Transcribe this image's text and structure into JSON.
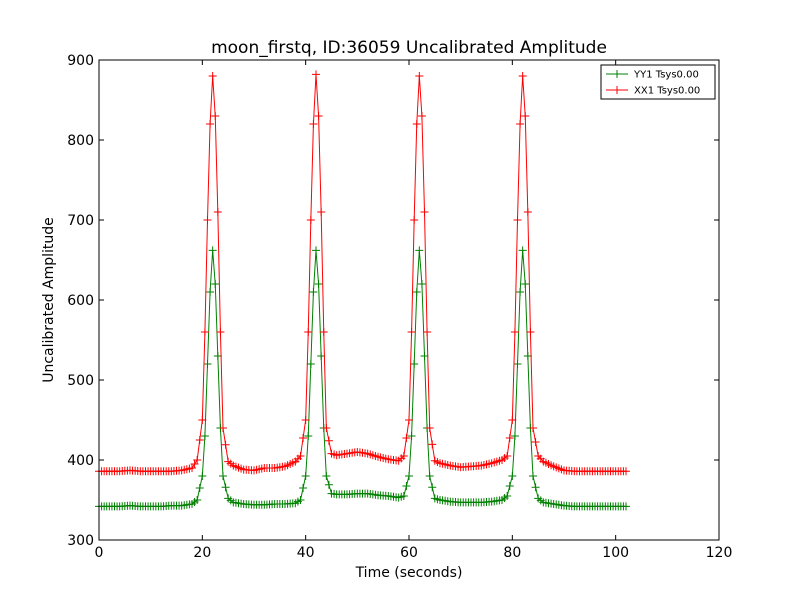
{
  "chart_data": {
    "type": "line",
    "title": "moon_firstq, ID:36059 Uncalibrated Amplitude",
    "xlabel": "Time (seconds)",
    "ylabel": "Uncalibrated Amplitude",
    "xlim": [
      0,
      120
    ],
    "ylim": [
      300,
      900
    ],
    "xticks": [
      0,
      20,
      40,
      60,
      80,
      100,
      120
    ],
    "yticks": [
      300,
      400,
      500,
      600,
      700,
      800,
      900
    ],
    "grid": false,
    "legend_position": "top-right",
    "x": [
      0,
      2,
      4,
      6,
      8,
      10,
      12,
      14,
      16,
      18,
      19,
      20,
      20.5,
      21,
      21.5,
      22,
      22.5,
      23,
      23.5,
      24,
      25,
      26,
      28,
      30,
      32,
      34,
      36,
      38,
      39,
      40,
      40.5,
      41,
      41.5,
      42,
      42.5,
      43,
      43.5,
      44,
      45,
      46,
      48,
      50,
      52,
      54,
      56,
      58,
      59,
      60,
      60.5,
      61,
      61.5,
      62,
      62.5,
      63,
      63.5,
      64,
      65,
      66,
      68,
      70,
      72,
      74,
      76,
      78,
      79,
      80,
      80.5,
      81,
      81.5,
      82,
      82.5,
      83,
      83.5,
      84,
      85,
      86,
      88,
      90,
      92,
      94,
      96,
      98,
      100,
      102
    ],
    "series": [
      {
        "name": "YY1 Tsys0.00",
        "color": "#008000",
        "values": [
          342,
          342,
          342,
          343,
          342,
          342,
          342,
          343,
          343,
          345,
          350,
          380,
          430,
          520,
          610,
          662,
          620,
          530,
          440,
          380,
          352,
          347,
          345,
          344,
          344,
          345,
          345,
          346,
          350,
          380,
          430,
          520,
          610,
          662,
          620,
          530,
          440,
          380,
          358,
          357,
          357,
          358,
          358,
          356,
          355,
          353,
          355,
          380,
          430,
          520,
          610,
          662,
          620,
          530,
          440,
          380,
          352,
          350,
          348,
          347,
          347,
          347,
          348,
          350,
          355,
          380,
          430,
          520,
          610,
          662,
          620,
          530,
          440,
          380,
          352,
          347,
          345,
          343,
          342,
          342,
          342,
          342,
          342,
          342
        ]
      },
      {
        "name": "XX1 Tsys0.00",
        "color": "#ff0000",
        "values": [
          386,
          386,
          386,
          387,
          386,
          386,
          386,
          386,
          387,
          390,
          400,
          450,
          560,
          700,
          820,
          880,
          830,
          710,
          560,
          440,
          398,
          393,
          388,
          387,
          390,
          390,
          392,
          398,
          405,
          450,
          560,
          700,
          820,
          882,
          830,
          710,
          560,
          440,
          408,
          406,
          408,
          410,
          408,
          404,
          401,
          399,
          405,
          450,
          560,
          700,
          820,
          880,
          830,
          710,
          560,
          440,
          399,
          396,
          393,
          391,
          392,
          393,
          396,
          400,
          405,
          450,
          560,
          700,
          820,
          880,
          830,
          710,
          560,
          440,
          405,
          398,
          392,
          387,
          386,
          386,
          386,
          386,
          386,
          386
        ]
      }
    ]
  }
}
